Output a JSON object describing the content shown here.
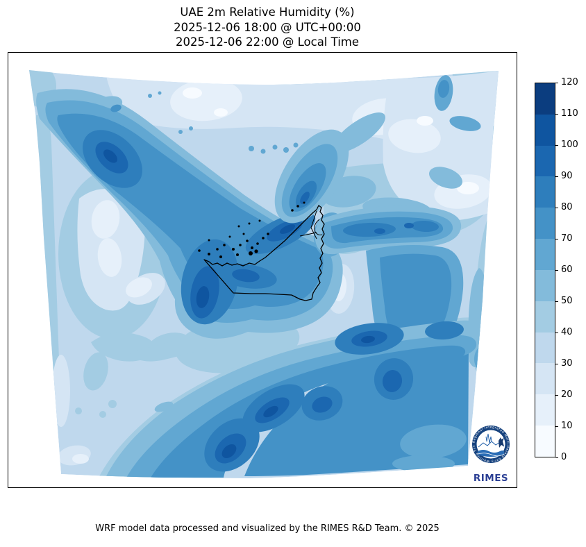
{
  "title": {
    "line1": "UAE 2m Relative Humidity (%)",
    "line2": "2025-12-06 18:00 @ UTC+00:00",
    "line3": "2025-12-06 22:00 @ Local Time"
  },
  "footer": {
    "credit": "WRF model data processed and visualized by the RIMES R&D Team. © 2025"
  },
  "colorbar": {
    "ticks_top_to_bottom": [
      "120",
      "110",
      "100",
      "90",
      "80",
      "70",
      "60",
      "50",
      "40",
      "30",
      "20",
      "10",
      "0"
    ],
    "colors_top_to_bottom": [
      "#0b3d7f",
      "#0f55a0",
      "#1b67b0",
      "#2e7ebc",
      "#4492c7",
      "#61a7d2",
      "#83bbdb",
      "#a3cce3",
      "#bfd8ed",
      "#d5e5f4",
      "#e6f0fa",
      "#f7fbff"
    ]
  },
  "map": {
    "level_colors": [
      "#f7fbff",
      "#e6f0fa",
      "#d5e5f4",
      "#bfd8ed",
      "#a3cce3",
      "#83bbdb",
      "#61a7d2",
      "#4492c7",
      "#2e7ebc",
      "#1b67b0",
      "#0f55a0",
      "#0b3d7f"
    ],
    "levels": [
      0,
      10,
      20,
      30,
      40,
      50,
      60,
      70,
      80,
      90,
      100,
      110,
      120
    ],
    "outline_color": "#000000"
  },
  "logo": {
    "wordmark": "RIMES",
    "ring_text": "Regional Integrated Multi-Hazard Early Warning System"
  }
}
